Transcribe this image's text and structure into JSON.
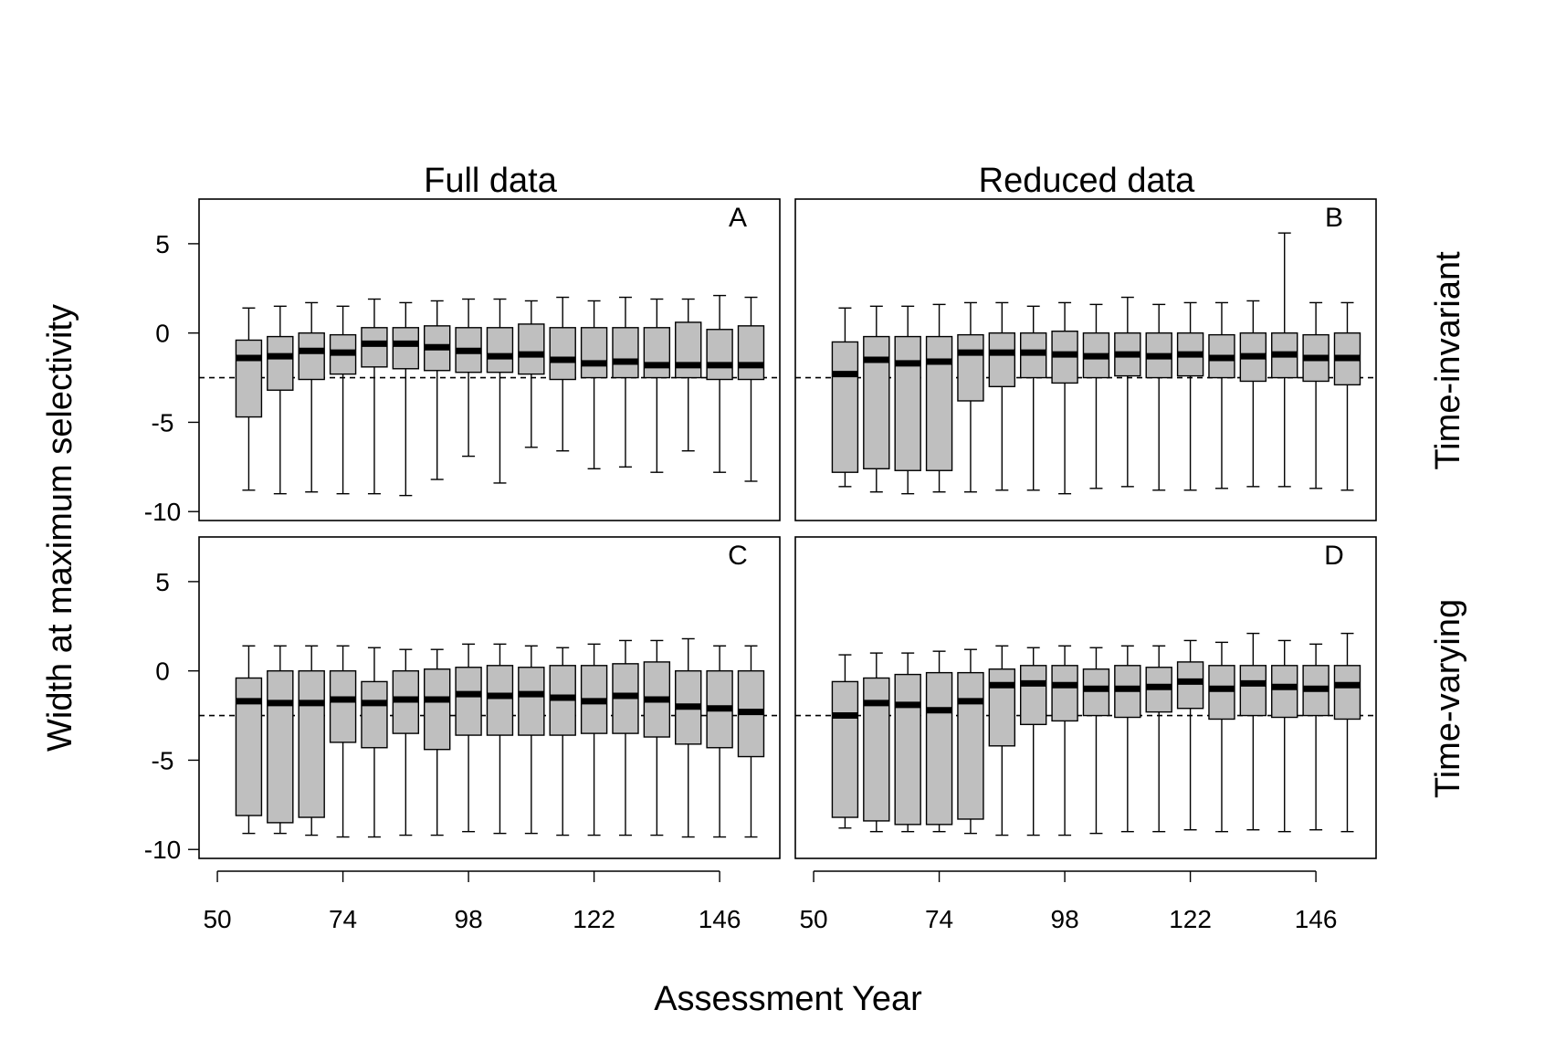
{
  "chart_data": {
    "type": "boxplot",
    "xlabel": "Assessment Year",
    "ylabel": "Width at maximum selectivity",
    "column_titles": [
      "Full data",
      "Reduced data"
    ],
    "row_titles": [
      "Time-invariant",
      "Time-varying"
    ],
    "x_ticks": [
      "50",
      "74",
      "98",
      "122",
      "146"
    ],
    "y_ticks": [
      "5",
      "0",
      "-5",
      "-10"
    ],
    "ylim": [
      -10.5,
      7.5
    ],
    "xlim": [
      46.5,
      157.5
    ],
    "reference_line": -2.5,
    "box_fill": "#bfbfbf",
    "years": [
      56,
      62,
      68,
      74,
      80,
      86,
      92,
      98,
      104,
      110,
      116,
      122,
      128,
      134,
      140,
      146,
      152
    ],
    "panels": [
      {
        "label": "A",
        "row": 0,
        "col": 0,
        "boxes": [
          {
            "x": 56,
            "min": -8.8,
            "q1": -4.7,
            "median": -1.4,
            "q3": -0.4,
            "max": 1.4
          },
          {
            "x": 62,
            "min": -9.0,
            "q1": -3.2,
            "median": -1.3,
            "q3": -0.2,
            "max": 1.5
          },
          {
            "x": 68,
            "min": -8.9,
            "q1": -2.6,
            "median": -1.0,
            "q3": 0.0,
            "max": 1.7
          },
          {
            "x": 74,
            "min": -9.0,
            "q1": -2.3,
            "median": -1.1,
            "q3": -0.1,
            "max": 1.5
          },
          {
            "x": 80,
            "min": -9.0,
            "q1": -1.9,
            "median": -0.6,
            "q3": 0.3,
            "max": 1.9
          },
          {
            "x": 86,
            "min": -9.1,
            "q1": -2.0,
            "median": -0.6,
            "q3": 0.3,
            "max": 1.7
          },
          {
            "x": 92,
            "min": -8.2,
            "q1": -2.1,
            "median": -0.8,
            "q3": 0.4,
            "max": 1.8
          },
          {
            "x": 98,
            "min": -6.9,
            "q1": -2.2,
            "median": -1.0,
            "q3": 0.3,
            "max": 1.9
          },
          {
            "x": 104,
            "min": -8.4,
            "q1": -2.2,
            "median": -1.3,
            "q3": 0.3,
            "max": 1.9
          },
          {
            "x": 110,
            "min": -6.4,
            "q1": -2.3,
            "median": -1.2,
            "q3": 0.5,
            "max": 1.8
          },
          {
            "x": 116,
            "min": -6.6,
            "q1": -2.6,
            "median": -1.5,
            "q3": 0.3,
            "max": 2.0
          },
          {
            "x": 122,
            "min": -7.6,
            "q1": -2.5,
            "median": -1.7,
            "q3": 0.3,
            "max": 1.8
          },
          {
            "x": 128,
            "min": -7.5,
            "q1": -2.5,
            "median": -1.6,
            "q3": 0.3,
            "max": 2.0
          },
          {
            "x": 134,
            "min": -7.8,
            "q1": -2.5,
            "median": -1.8,
            "q3": 0.3,
            "max": 1.9
          },
          {
            "x": 140,
            "min": -6.6,
            "q1": -2.5,
            "median": -1.8,
            "q3": 0.6,
            "max": 1.9
          },
          {
            "x": 146,
            "min": -7.8,
            "q1": -2.6,
            "median": -1.8,
            "q3": 0.2,
            "max": 2.1
          },
          {
            "x": 152,
            "min": -8.3,
            "q1": -2.6,
            "median": -1.8,
            "q3": 0.4,
            "max": 2.0
          }
        ]
      },
      {
        "label": "B",
        "row": 0,
        "col": 1,
        "boxes": [
          {
            "x": 56,
            "min": -8.6,
            "q1": -7.8,
            "median": -2.3,
            "q3": -0.5,
            "max": 1.4
          },
          {
            "x": 62,
            "min": -8.9,
            "q1": -7.6,
            "median": -1.5,
            "q3": -0.2,
            "max": 1.5
          },
          {
            "x": 68,
            "min": -9.0,
            "q1": -7.7,
            "median": -1.7,
            "q3": -0.2,
            "max": 1.5
          },
          {
            "x": 74,
            "min": -8.9,
            "q1": -7.7,
            "median": -1.6,
            "q3": -0.2,
            "max": 1.6
          },
          {
            "x": 80,
            "min": -8.9,
            "q1": -3.8,
            "median": -1.1,
            "q3": -0.1,
            "max": 1.7
          },
          {
            "x": 86,
            "min": -8.8,
            "q1": -3.0,
            "median": -1.1,
            "q3": 0.0,
            "max": 1.7
          },
          {
            "x": 92,
            "min": -8.8,
            "q1": -2.5,
            "median": -1.1,
            "q3": 0.0,
            "max": 1.5
          },
          {
            "x": 98,
            "min": -9.0,
            "q1": -2.8,
            "median": -1.2,
            "q3": 0.1,
            "max": 1.7
          },
          {
            "x": 104,
            "min": -8.7,
            "q1": -2.5,
            "median": -1.3,
            "q3": 0.0,
            "max": 1.6
          },
          {
            "x": 110,
            "min": -8.6,
            "q1": -2.4,
            "median": -1.2,
            "q3": 0.0,
            "max": 2.0
          },
          {
            "x": 116,
            "min": -8.8,
            "q1": -2.5,
            "median": -1.3,
            "q3": 0.0,
            "max": 1.6
          },
          {
            "x": 122,
            "min": -8.8,
            "q1": -2.4,
            "median": -1.2,
            "q3": 0.0,
            "max": 1.7
          },
          {
            "x": 128,
            "min": -8.7,
            "q1": -2.5,
            "median": -1.4,
            "q3": -0.1,
            "max": 1.7
          },
          {
            "x": 134,
            "min": -8.6,
            "q1": -2.7,
            "median": -1.3,
            "q3": 0.0,
            "max": 1.8
          },
          {
            "x": 140,
            "min": -8.6,
            "q1": -2.5,
            "median": -1.2,
            "q3": 0.0,
            "max": 5.6
          },
          {
            "x": 146,
            "min": -8.7,
            "q1": -2.7,
            "median": -1.4,
            "q3": -0.1,
            "max": 1.7
          },
          {
            "x": 152,
            "min": -8.8,
            "q1": -2.9,
            "median": -1.4,
            "q3": 0.0,
            "max": 1.7
          }
        ]
      },
      {
        "label": "C",
        "row": 1,
        "col": 0,
        "boxes": [
          {
            "x": 56,
            "min": -9.1,
            "q1": -8.1,
            "median": -1.7,
            "q3": -0.4,
            "max": 1.4
          },
          {
            "x": 62,
            "min": -9.1,
            "q1": -8.5,
            "median": -1.8,
            "q3": 0.0,
            "max": 1.4
          },
          {
            "x": 68,
            "min": -9.2,
            "q1": -8.2,
            "median": -1.8,
            "q3": 0.0,
            "max": 1.4
          },
          {
            "x": 74,
            "min": -9.3,
            "q1": -4.0,
            "median": -1.6,
            "q3": 0.0,
            "max": 1.4
          },
          {
            "x": 80,
            "min": -9.3,
            "q1": -4.3,
            "median": -1.8,
            "q3": -0.6,
            "max": 1.3
          },
          {
            "x": 86,
            "min": -9.2,
            "q1": -3.5,
            "median": -1.6,
            "q3": 0.0,
            "max": 1.2
          },
          {
            "x": 92,
            "min": -9.2,
            "q1": -4.4,
            "median": -1.6,
            "q3": 0.1,
            "max": 1.2
          },
          {
            "x": 98,
            "min": -9.0,
            "q1": -3.6,
            "median": -1.3,
            "q3": 0.2,
            "max": 1.5
          },
          {
            "x": 104,
            "min": -9.1,
            "q1": -3.6,
            "median": -1.4,
            "q3": 0.3,
            "max": 1.5
          },
          {
            "x": 110,
            "min": -9.1,
            "q1": -3.6,
            "median": -1.3,
            "q3": 0.2,
            "max": 1.4
          },
          {
            "x": 116,
            "min": -9.2,
            "q1": -3.6,
            "median": -1.5,
            "q3": 0.3,
            "max": 1.3
          },
          {
            "x": 122,
            "min": -9.2,
            "q1": -3.5,
            "median": -1.7,
            "q3": 0.3,
            "max": 1.5
          },
          {
            "x": 128,
            "min": -9.2,
            "q1": -3.5,
            "median": -1.4,
            "q3": 0.4,
            "max": 1.7
          },
          {
            "x": 134,
            "min": -9.2,
            "q1": -3.7,
            "median": -1.6,
            "q3": 0.5,
            "max": 1.7
          },
          {
            "x": 140,
            "min": -9.3,
            "q1": -4.1,
            "median": -2.0,
            "q3": 0.0,
            "max": 1.8
          },
          {
            "x": 146,
            "min": -9.3,
            "q1": -4.3,
            "median": -2.1,
            "q3": 0.0,
            "max": 1.4
          },
          {
            "x": 152,
            "min": -9.3,
            "q1": -4.8,
            "median": -2.3,
            "q3": 0.0,
            "max": 1.4
          }
        ]
      },
      {
        "label": "D",
        "row": 1,
        "col": 1,
        "boxes": [
          {
            "x": 56,
            "min": -8.8,
            "q1": -8.2,
            "median": -2.5,
            "q3": -0.6,
            "max": 0.9
          },
          {
            "x": 62,
            "min": -9.0,
            "q1": -8.4,
            "median": -1.8,
            "q3": -0.4,
            "max": 1.0
          },
          {
            "x": 68,
            "min": -9.0,
            "q1": -8.6,
            "median": -1.9,
            "q3": -0.2,
            "max": 1.0
          },
          {
            "x": 74,
            "min": -9.0,
            "q1": -8.6,
            "median": -2.2,
            "q3": -0.1,
            "max": 1.1
          },
          {
            "x": 80,
            "min": -9.1,
            "q1": -8.3,
            "median": -1.7,
            "q3": -0.1,
            "max": 1.2
          },
          {
            "x": 86,
            "min": -9.2,
            "q1": -4.2,
            "median": -0.8,
            "q3": 0.1,
            "max": 1.4
          },
          {
            "x": 92,
            "min": -9.2,
            "q1": -3.0,
            "median": -0.7,
            "q3": 0.3,
            "max": 1.3
          },
          {
            "x": 98,
            "min": -9.2,
            "q1": -2.8,
            "median": -0.8,
            "q3": 0.3,
            "max": 1.4
          },
          {
            "x": 104,
            "min": -9.1,
            "q1": -2.5,
            "median": -1.0,
            "q3": 0.1,
            "max": 1.3
          },
          {
            "x": 110,
            "min": -9.0,
            "q1": -2.6,
            "median": -1.0,
            "q3": 0.3,
            "max": 1.4
          },
          {
            "x": 116,
            "min": -9.0,
            "q1": -2.3,
            "median": -0.9,
            "q3": 0.2,
            "max": 1.4
          },
          {
            "x": 122,
            "min": -8.9,
            "q1": -2.1,
            "median": -0.6,
            "q3": 0.5,
            "max": 1.7
          },
          {
            "x": 128,
            "min": -9.0,
            "q1": -2.7,
            "median": -1.0,
            "q3": 0.3,
            "max": 1.6
          },
          {
            "x": 134,
            "min": -8.9,
            "q1": -2.5,
            "median": -0.7,
            "q3": 0.3,
            "max": 2.1
          },
          {
            "x": 140,
            "min": -9.0,
            "q1": -2.6,
            "median": -0.9,
            "q3": 0.3,
            "max": 1.7
          },
          {
            "x": 146,
            "min": -8.9,
            "q1": -2.5,
            "median": -1.0,
            "q3": 0.3,
            "max": 1.5
          },
          {
            "x": 152,
            "min": -9.0,
            "q1": -2.7,
            "median": -0.8,
            "q3": 0.3,
            "max": 2.1
          }
        ]
      }
    ]
  }
}
